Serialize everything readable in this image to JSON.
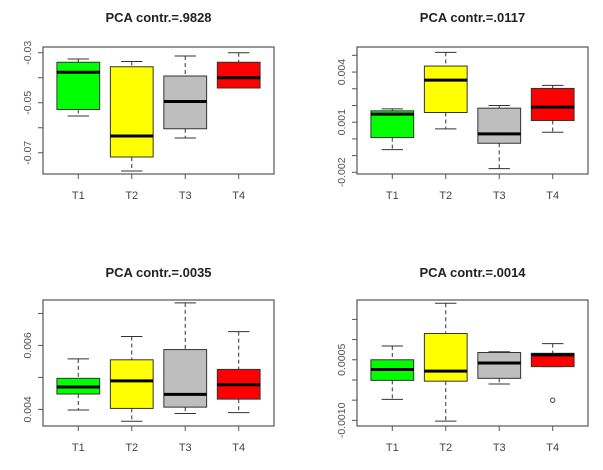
{
  "chart_data": [
    {
      "type": "boxplot",
      "title": "PCA contr.=.9828",
      "categories": [
        "T1",
        "T2",
        "T3",
        "T4"
      ],
      "colors": [
        "#00ff00",
        "#ffff00",
        "#bebebe",
        "#ff0000"
      ],
      "ylim": [
        -0.0785,
        -0.0277
      ],
      "yticks": [
        -0.07,
        -0.06,
        -0.05,
        -0.04,
        -0.03
      ],
      "ytick_labels": [
        "-0.07",
        "",
        "-0.05",
        "",
        "-0.03"
      ],
      "boxes": [
        {
          "whisker_low": -0.0553,
          "q1": -0.0527,
          "median": -0.0378,
          "q3": -0.0338,
          "whisker_high": -0.0325,
          "outliers": []
        },
        {
          "whisker_low": -0.0773,
          "q1": -0.0717,
          "median": -0.0633,
          "q3": -0.0356,
          "whisker_high": -0.0335,
          "outliers": []
        },
        {
          "whisker_low": -0.0641,
          "q1": -0.0604,
          "median": -0.0495,
          "q3": -0.0393,
          "whisker_high": -0.0313,
          "outliers": []
        },
        {
          "whisker_low": -0.0441,
          "q1": -0.0441,
          "median": -0.04,
          "q3": -0.0338,
          "whisker_high": -0.03,
          "outliers": []
        }
      ],
      "xlabel": "",
      "ylabel": "",
      "grid": false
    },
    {
      "type": "boxplot",
      "title": "PCA contr.=.0117",
      "categories": [
        "T1",
        "T2",
        "T3",
        "T4"
      ],
      "colors": [
        "#00ff00",
        "#ffff00",
        "#bebebe",
        "#ff0000"
      ],
      "ylim": [
        -0.0021,
        0.0055
      ],
      "yticks": [
        -0.002,
        -0.001,
        0.0,
        0.001,
        0.002,
        0.003,
        0.004,
        0.005
      ],
      "ytick_labels": [
        "-0.002",
        "",
        "",
        "0.001",
        "",
        "",
        "0.004",
        ""
      ],
      "boxes": [
        {
          "whisker_low": -0.00064,
          "q1": 8e-05,
          "median": 0.00148,
          "q3": 0.00168,
          "whisker_high": 0.0018,
          "outliers": []
        },
        {
          "whisker_low": 0.0006,
          "q1": 0.00158,
          "median": 0.00352,
          "q3": 0.00436,
          "whisker_high": 0.00518,
          "outliers": []
        },
        {
          "whisker_low": -0.00178,
          "q1": -0.00026,
          "median": 0.0003,
          "q3": 0.00184,
          "whisker_high": 0.002,
          "outliers": []
        },
        {
          "whisker_low": 0.0004,
          "q1": 0.0011,
          "median": 0.0019,
          "q3": 0.00302,
          "whisker_high": 0.0032,
          "outliers": []
        }
      ],
      "xlabel": "",
      "ylabel": "",
      "grid": false
    },
    {
      "type": "boxplot",
      "title": "PCA contr.=.0035",
      "categories": [
        "T1",
        "T2",
        "T3",
        "T4"
      ],
      "colors": [
        "#00ff00",
        "#ffff00",
        "#bebebe",
        "#ff0000"
      ],
      "ylim": [
        0.00348,
        0.00742
      ],
      "yticks": [
        0.004,
        0.005,
        0.006,
        0.007
      ],
      "ytick_labels": [
        "0.004",
        "",
        "0.006",
        ""
      ],
      "boxes": [
        {
          "whisker_low": 0.00398,
          "q1": 0.00448,
          "median": 0.0047,
          "q3": 0.00497,
          "whisker_high": 0.00558,
          "outliers": []
        },
        {
          "whisker_low": 0.00363,
          "q1": 0.00403,
          "median": 0.00489,
          "q3": 0.00555,
          "whisker_high": 0.00628,
          "outliers": []
        },
        {
          "whisker_low": 0.00387,
          "q1": 0.00407,
          "median": 0.00447,
          "q3": 0.00587,
          "whisker_high": 0.00733,
          "outliers": []
        },
        {
          "whisker_low": 0.0039,
          "q1": 0.00432,
          "median": 0.00477,
          "q3": 0.00525,
          "whisker_high": 0.00643,
          "outliers": []
        }
      ],
      "xlabel": "",
      "ylabel": "",
      "grid": false
    },
    {
      "type": "boxplot",
      "title": "PCA contr.=.0014",
      "categories": [
        "T1",
        "T2",
        "T3",
        "T4"
      ],
      "colors": [
        "#00ff00",
        "#ffff00",
        "#bebebe",
        "#ff0000"
      ],
      "ylim": [
        -0.00114,
        0.00198
      ],
      "yticks": [
        -0.001,
        -0.0005,
        0.0,
        0.0005,
        0.001,
        0.0015
      ],
      "ytick_labels": [
        "-0.0010",
        "",
        "",
        "0.0005",
        "",
        ""
      ],
      "boxes": [
        {
          "whisker_low": -0.00048,
          "q1": -1e-05,
          "median": 0.00026,
          "q3": 0.0005,
          "whisker_high": 0.00084,
          "outliers": []
        },
        {
          "whisker_low": -0.00102,
          "q1": -3e-05,
          "median": 0.00022,
          "q3": 0.00115,
          "whisker_high": 0.0019,
          "outliers": []
        },
        {
          "whisker_low": -0.0001,
          "q1": 4e-05,
          "median": 0.00042,
          "q3": 0.00068,
          "whisker_high": 0.0007,
          "outliers": []
        },
        {
          "whisker_low": 0.00033,
          "q1": 0.00033,
          "median": 0.00062,
          "q3": 0.00066,
          "whisker_high": 0.0009,
          "outliers": [
            -0.0005
          ]
        }
      ],
      "xlabel": "",
      "ylabel": "",
      "grid": false
    }
  ]
}
